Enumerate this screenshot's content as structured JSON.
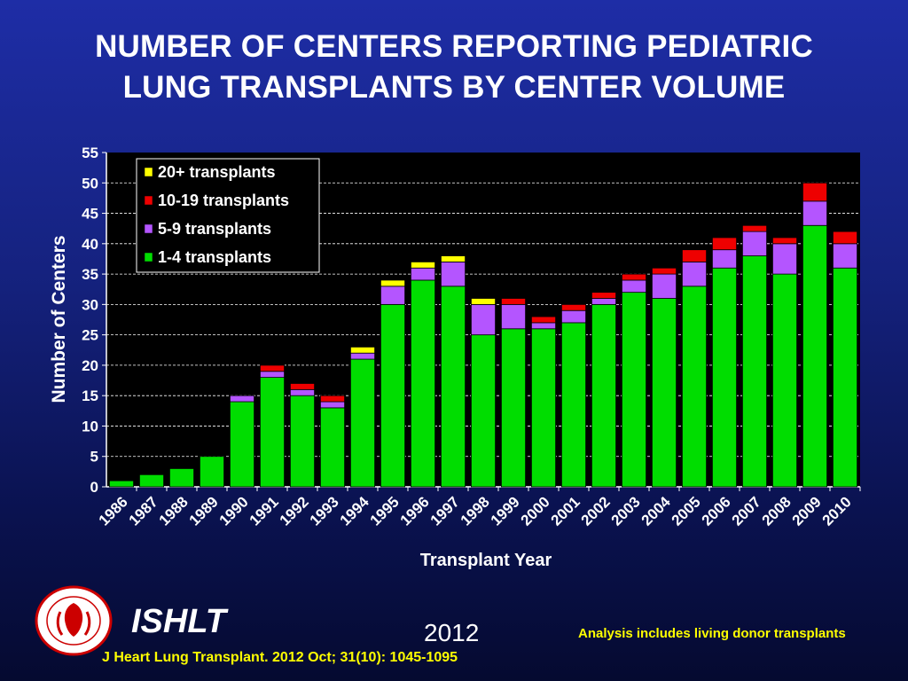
{
  "title": {
    "line1": "NUMBER OF CENTERS REPORTING PEDIATRIC",
    "line2": "LUNG TRANSPLANTS BY CENTER VOLUME"
  },
  "chart_data": {
    "type": "bar",
    "stacked": true,
    "title": "NUMBER OF CENTERS REPORTING PEDIATRIC LUNG TRANSPLANTS BY CENTER VOLUME",
    "xlabel": "Transplant Year",
    "ylabel": "Number of Centers",
    "ylim": [
      0,
      55
    ],
    "yticks": [
      0,
      5,
      10,
      15,
      20,
      25,
      30,
      35,
      40,
      45,
      50,
      55
    ],
    "grid": true,
    "legend_position": "top-left",
    "categories": [
      "1986",
      "1987",
      "1988",
      "1989",
      "1990",
      "1991",
      "1992",
      "1993",
      "1994",
      "1995",
      "1996",
      "1997",
      "1998",
      "1999",
      "2000",
      "2001",
      "2002",
      "2003",
      "2004",
      "2005",
      "2006",
      "2007",
      "2008",
      "2009",
      "2010"
    ],
    "series": [
      {
        "name": "1-4 transplants",
        "color": "#00dd00",
        "values": [
          1,
          2,
          3,
          5,
          14,
          18,
          15,
          13,
          21,
          30,
          34,
          33,
          25,
          26,
          26,
          27,
          30,
          32,
          31,
          33,
          36,
          38,
          35,
          43,
          36
        ]
      },
      {
        "name": "5-9 transplants",
        "color": "#b455ff",
        "values": [
          0,
          0,
          0,
          0,
          1,
          1,
          1,
          1,
          1,
          3,
          2,
          4,
          5,
          4,
          1,
          2,
          1,
          2,
          4,
          4,
          3,
          4,
          5,
          4,
          4
        ]
      },
      {
        "name": "10-19 transplants",
        "color": "#ee0000",
        "values": [
          0,
          0,
          0,
          0,
          0,
          1,
          1,
          1,
          0,
          0,
          0,
          0,
          0,
          1,
          1,
          1,
          1,
          1,
          1,
          2,
          2,
          1,
          1,
          3,
          2
        ]
      },
      {
        "name": "20+ transplants",
        "color": "#ffff00",
        "values": [
          0,
          0,
          0,
          0,
          0,
          0,
          0,
          0,
          1,
          1,
          1,
          1,
          1,
          0,
          0,
          0,
          0,
          0,
          0,
          0,
          0,
          0,
          0,
          0,
          0
        ]
      }
    ],
    "legend_order": [
      "20+ transplants",
      "10-19 transplants",
      "5-9 transplants",
      "1-4 transplants"
    ]
  },
  "footer": {
    "org": "ISHLT",
    "year": "2012",
    "note": "Analysis includes living donor transplants",
    "citation": "J Heart Lung Transplant.  2012 Oct; 31(10): 1045-1095"
  }
}
